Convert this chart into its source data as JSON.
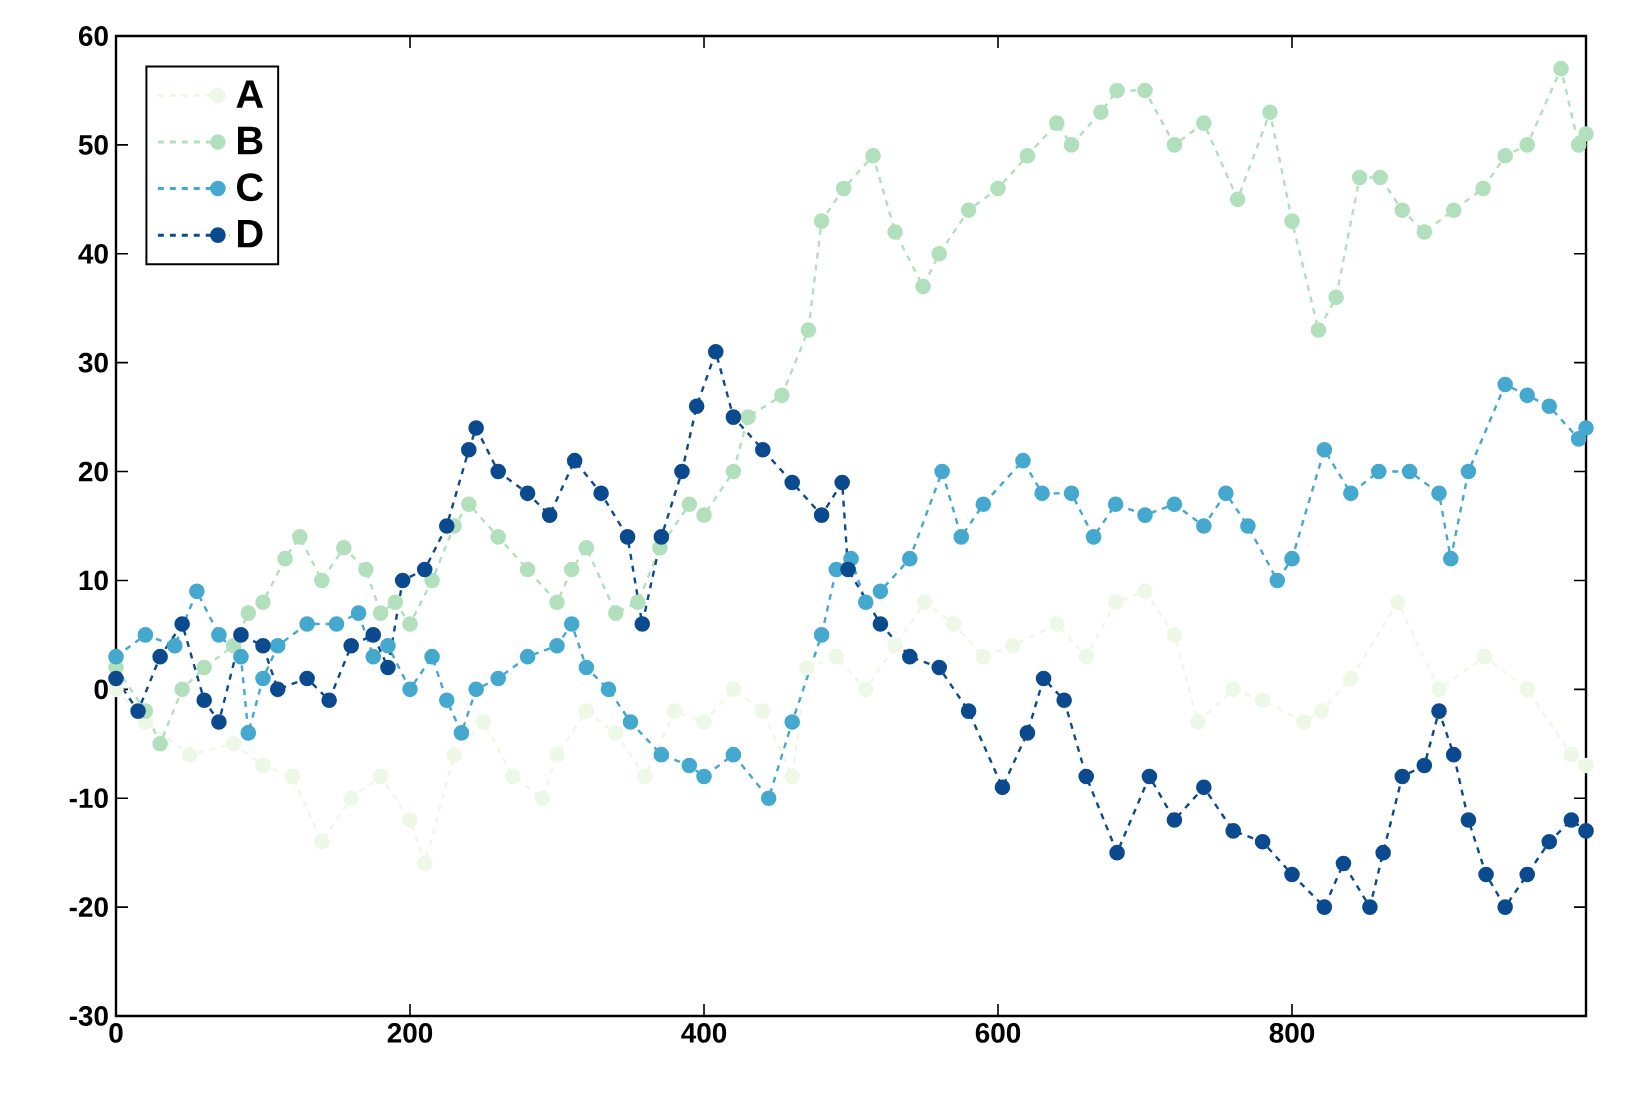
{
  "chart_data": {
    "type": "line",
    "marker": "circle",
    "line_style": "dashed",
    "legend": "top left",
    "xlim": [
      0,
      1000
    ],
    "ylim": [
      -30,
      60
    ],
    "xticks": [
      0,
      200,
      400,
      600,
      800
    ],
    "yticks": [
      -30,
      -20,
      -10,
      0,
      10,
      20,
      30,
      40,
      50,
      60
    ],
    "series": [
      {
        "name": "A",
        "color": "#eef8e6",
        "x": [
          0,
          20,
          50,
          80,
          100,
          120,
          140,
          160,
          180,
          200,
          210,
          230,
          250,
          270,
          290,
          300,
          320,
          340,
          360,
          380,
          400,
          420,
          440,
          460,
          470,
          490,
          510,
          530,
          550,
          570,
          590,
          610,
          640,
          660,
          680,
          700,
          720,
          736,
          760,
          780,
          808,
          820,
          840,
          872,
          900,
          931,
          960,
          990,
          1000
        ],
        "values": [
          0,
          -3,
          -6,
          -5,
          -7,
          -8,
          -14,
          -10,
          -8,
          -12,
          -16,
          -6,
          -3,
          -8,
          -10,
          -6,
          -2,
          -4,
          -8,
          -2,
          -3,
          0,
          -2,
          -8,
          2,
          3,
          0,
          4,
          8,
          6,
          3,
          4,
          6,
          3,
          8,
          9,
          5,
          -3,
          0,
          -1,
          -3,
          -2,
          1,
          8,
          0,
          3,
          0,
          -6,
          -7
        ]
      },
      {
        "name": "B",
        "color": "#b2e0bd",
        "x": [
          0,
          20,
          30,
          45,
          60,
          80,
          90,
          100,
          115,
          125,
          140,
          155,
          170,
          180,
          190,
          200,
          215,
          230,
          240,
          260,
          280,
          300,
          310,
          320,
          340,
          355,
          370,
          390,
          400,
          420,
          430,
          453,
          471,
          480,
          495,
          515,
          530,
          549,
          560,
          580,
          600,
          620,
          640,
          650,
          670,
          681,
          700,
          720,
          740,
          763,
          785,
          800,
          818,
          830,
          846,
          860,
          875,
          890,
          910,
          930,
          945,
          960,
          983,
          995,
          1000
        ],
        "values": [
          2,
          -2,
          -5,
          0,
          2,
          4,
          7,
          8,
          12,
          14,
          10,
          13,
          11,
          7,
          8,
          6,
          10,
          15,
          17,
          14,
          11,
          8,
          11,
          13,
          7,
          8,
          13,
          17,
          16,
          20,
          25,
          27,
          33,
          43,
          46,
          49,
          42,
          37,
          40,
          44,
          46,
          49,
          52,
          50,
          53,
          55,
          55,
          50,
          52,
          45,
          53,
          43,
          33,
          36,
          47,
          47,
          44,
          42,
          44,
          46,
          49,
          50,
          57,
          50,
          51
        ]
      },
      {
        "name": "C",
        "color": "#45a8cf",
        "x": [
          0,
          20,
          40,
          55,
          70,
          85,
          90,
          100,
          110,
          130,
          150,
          165,
          175,
          185,
          200,
          215,
          225,
          235,
          245,
          260,
          280,
          300,
          310,
          320,
          335,
          350,
          371,
          390,
          400,
          420,
          444,
          460,
          480,
          490,
          500,
          510,
          520,
          540,
          562,
          575,
          590,
          617,
          630,
          650,
          665,
          680,
          700,
          720,
          740,
          755,
          770,
          790,
          800,
          822,
          840,
          859,
          880,
          900,
          908,
          920,
          945,
          960,
          975,
          995,
          1000
        ],
        "values": [
          3,
          5,
          4,
          9,
          5,
          3,
          -4,
          1,
          4,
          6,
          6,
          7,
          3,
          4,
          0,
          3,
          -1,
          -4,
          0,
          1,
          3,
          4,
          6,
          2,
          0,
          -3,
          -6,
          -7,
          -8,
          -6,
          -10,
          -3,
          5,
          11,
          12,
          8,
          9,
          12,
          20,
          14,
          17,
          21,
          18,
          18,
          14,
          17,
          16,
          17,
          15,
          18,
          15,
          10,
          12,
          22,
          18,
          20,
          20,
          18,
          12,
          20,
          28,
          27,
          26,
          23,
          24
        ]
      },
      {
        "name": "D",
        "color": "#0b4a8e",
        "x": [
          0,
          15,
          30,
          45,
          60,
          70,
          85,
          100,
          110,
          130,
          145,
          160,
          175,
          185,
          195,
          210,
          225,
          240,
          245,
          260,
          280,
          295,
          312,
          330,
          348,
          358,
          371,
          385,
          395,
          408,
          420,
          440,
          460,
          480,
          494,
          498,
          520,
          540,
          560,
          580,
          603,
          620,
          631,
          645,
          660,
          681,
          703,
          720,
          740,
          760,
          780,
          800,
          822,
          835,
          853,
          862,
          875,
          890,
          900,
          910,
          920,
          932,
          945,
          960,
          975,
          990,
          1000
        ],
        "values": [
          1,
          -2,
          3,
          6,
          -1,
          -3,
          5,
          4,
          0,
          1,
          -1,
          4,
          5,
          2,
          10,
          11,
          15,
          22,
          24,
          20,
          18,
          16,
          21,
          18,
          14,
          6,
          14,
          20,
          26,
          31,
          25,
          22,
          19,
          16,
          19,
          11,
          6,
          3,
          2,
          -2,
          -9,
          -4,
          1,
          -1,
          -8,
          -15,
          -8,
          -12,
          -9,
          -13,
          -14,
          -17,
          -20,
          -16,
          -20,
          -15,
          -8,
          -7,
          -2,
          -6,
          -12,
          -17,
          -20,
          -17,
          -14,
          -12,
          -13
        ]
      }
    ]
  }
}
